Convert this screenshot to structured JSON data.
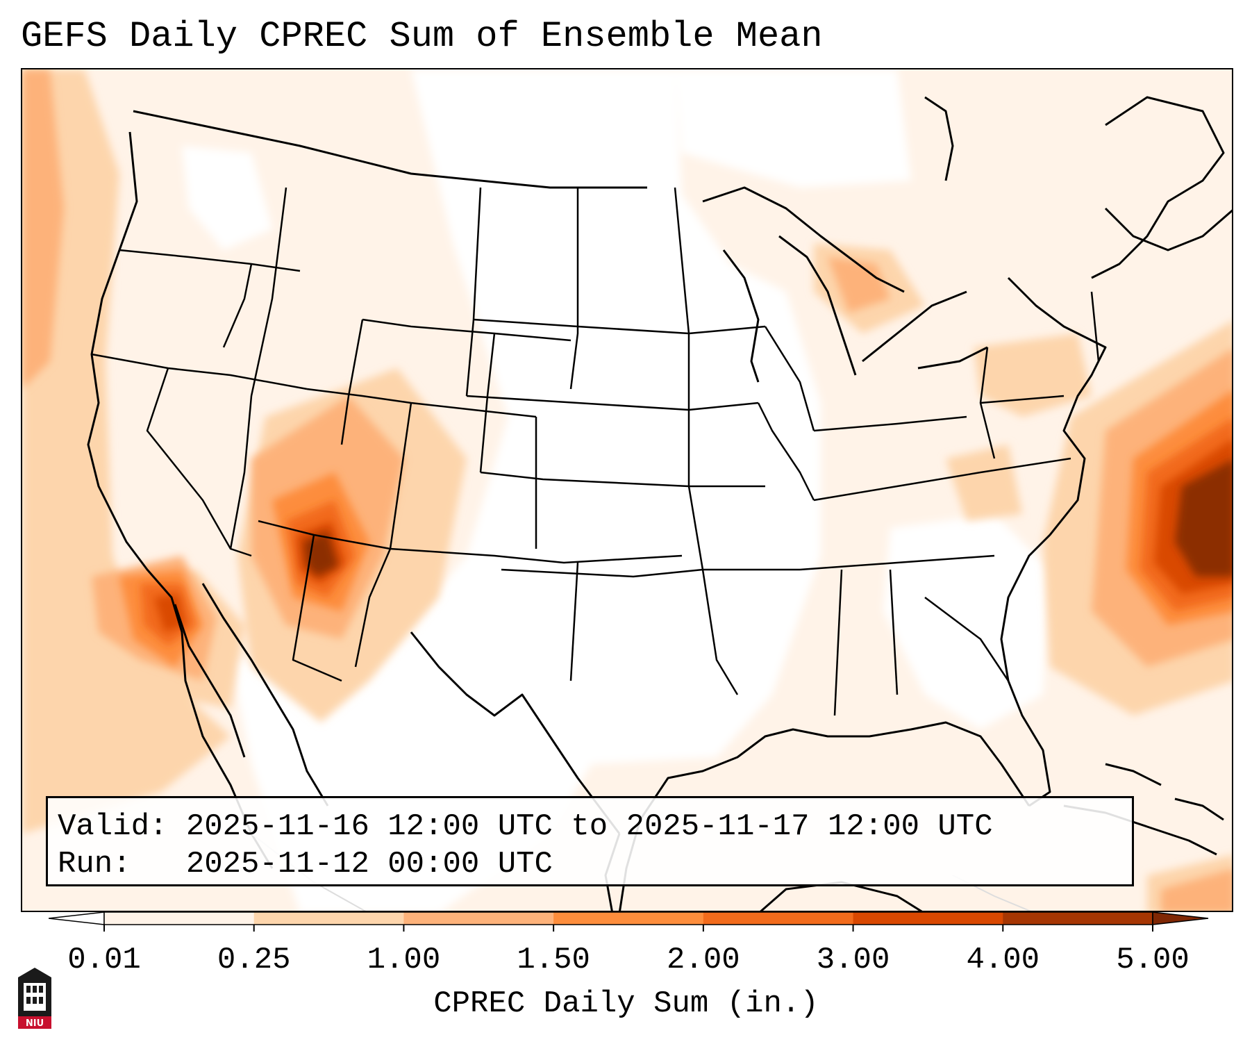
{
  "header": {
    "title": "GEFS Daily CPREC Sum of Ensemble Mean"
  },
  "info": {
    "valid_line": "Valid: 2025-11-16 12:00 UTC to 2025-11-17 12:00 UTC",
    "run_line": "Run:   2025-11-12 00:00 UTC"
  },
  "colorbar": {
    "label": "CPREC Daily Sum (in.)",
    "ticks": [
      "0.01",
      "0.25",
      "1.00",
      "1.50",
      "2.00",
      "3.00",
      "4.00",
      "5.00"
    ],
    "colors": [
      "#fff3e8",
      "#fdd5ac",
      "#fdb27a",
      "#fd8d3c",
      "#f26b1c",
      "#d94801",
      "#a63603"
    ],
    "extend_low_color": "#ffffff",
    "extend_high_color": "#7f2704"
  },
  "logo": {
    "text": "NIU"
  }
}
